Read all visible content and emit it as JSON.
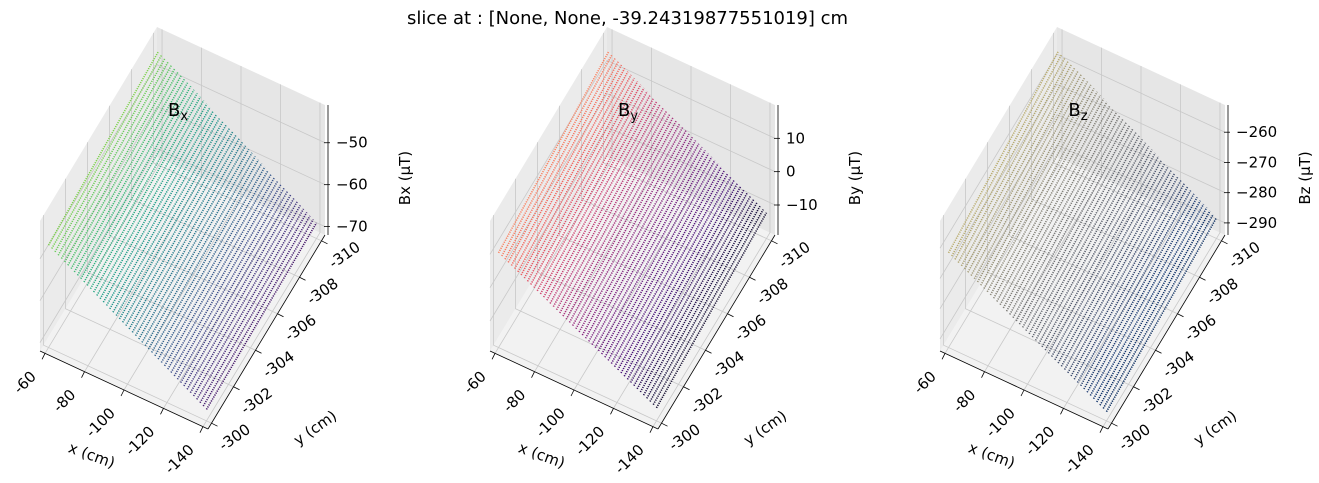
{
  "suptitle": "slice at : [None, None, -39.24319877551019] cm",
  "chart_data": [
    {
      "type": "surface",
      "title_main": "B",
      "title_sub": "x",
      "xlabel": "x (cm)",
      "ylabel": "y (cm)",
      "zlabel": "Bx (µT)",
      "xticks": [
        "-60",
        "-80",
        "-100",
        "-120",
        "-140"
      ],
      "yticks": [
        "-300",
        "-302",
        "-304",
        "-306",
        "-308",
        "-310"
      ],
      "zticks": [
        "−50",
        "−60",
        "−70"
      ],
      "zlim": [
        -72,
        -41
      ],
      "colormap": "viridis",
      "corners": {
        "x_-60_y_-300": -47,
        "x_-60_y_-310": -44,
        "x_-140_y_-300": -70,
        "x_-140_y_-310": -69
      }
    },
    {
      "type": "surface",
      "title_main": "B",
      "title_sub": "y",
      "xlabel": "x (cm)",
      "ylabel": "y (cm)",
      "zlabel": "By (µT)",
      "xticks": [
        "-60",
        "-80",
        "-100",
        "-120",
        "-140"
      ],
      "yticks": [
        "-300",
        "-302",
        "-304",
        "-306",
        "-308",
        "-310"
      ],
      "zticks": [
        "10",
        "0",
        "−10"
      ],
      "zlim": [
        -19,
        20
      ],
      "colormap": "magma",
      "corners": {
        "x_-60_y_-300": 10,
        "x_-60_y_-310": 16,
        "x_-140_y_-300": -16,
        "x_-140_y_-310": -12
      }
    },
    {
      "type": "surface",
      "title_main": "B",
      "title_sub": "z",
      "xlabel": "x (cm)",
      "ylabel": "y (cm)",
      "zlabel": "Bz (µT)",
      "xticks": [
        "-60",
        "-80",
        "-100",
        "-120",
        "-140"
      ],
      "yticks": [
        "-300",
        "-302",
        "-304",
        "-306",
        "-308",
        "-310"
      ],
      "zticks": [
        "−260",
        "−270",
        "−280",
        "−290"
      ],
      "zlim": [
        -294,
        -251
      ],
      "colormap": "cividis",
      "corners": {
        "x_-60_y_-300": -262,
        "x_-60_y_-310": -255,
        "x_-140_y_-300": -292,
        "x_-140_y_-310": -288
      }
    }
  ]
}
